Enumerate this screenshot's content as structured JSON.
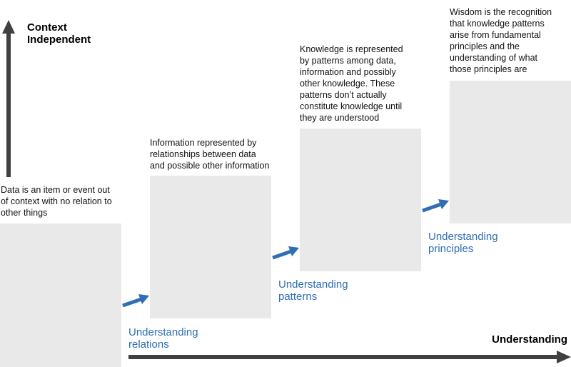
{
  "vertical_axis": {
    "label_line1": "Context",
    "label_line2": "Independent"
  },
  "horizontal_axis": {
    "label": "Understanding"
  },
  "stages": [
    {
      "description": [
        "Data is an item or event out",
        "of context with no relation to",
        "other things"
      ]
    },
    {
      "description": [
        "Information represented by",
        "relationships between data",
        "and possible other information"
      ]
    },
    {
      "description": [
        "Knowledge is represented",
        "by patterns among data,",
        "information and possibly",
        "other knowledge. These",
        "patterns don’t actually",
        "constitute knowledge until",
        "they are understood"
      ]
    },
    {
      "description": [
        "Wisdom is the recognition",
        "that knowledge patterns",
        "arise from fundamental",
        "principles and the",
        "understanding of what",
        "those principles are"
      ]
    }
  ],
  "transitions": [
    {
      "line1": "Understanding",
      "line2": "relations"
    },
    {
      "line1": "Understanding",
      "line2": "patterns"
    },
    {
      "line1": "Understanding",
      "line2": "principles"
    }
  ],
  "colors": {
    "box_fill": "#e9e9e9",
    "axis": "#404040",
    "transition_arrow": "#2f6db5",
    "transition_text": "#2f6db5"
  }
}
